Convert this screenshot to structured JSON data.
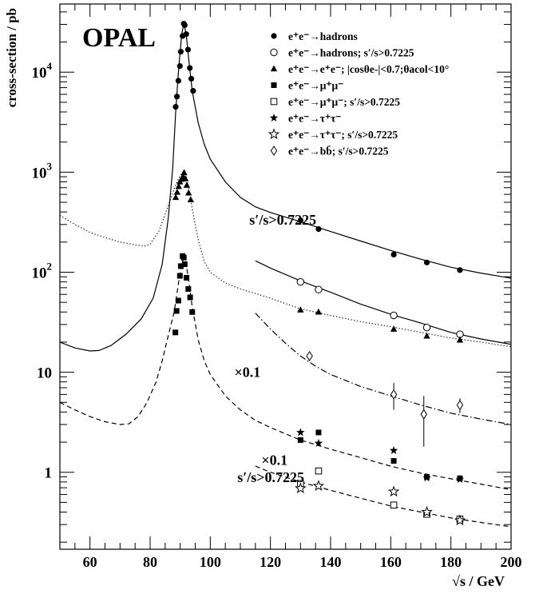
{
  "chart_data": {
    "type": "scatter",
    "title": "OPAL",
    "xlabel": "√s / GeV",
    "ylabel": "cross-section / pb",
    "xlim": [
      50,
      200
    ],
    "ylim": [
      0.17,
      48000
    ],
    "yscale": "log",
    "xticks": [
      "60",
      "80",
      "100",
      "120",
      "140",
      "160",
      "180",
      "200"
    ],
    "yticks": [
      {
        "value": 1,
        "base": "1",
        "exp": ""
      },
      {
        "value": 10,
        "base": "10",
        "exp": ""
      },
      {
        "value": 100,
        "base": "10",
        "exp": "2"
      },
      {
        "value": 1000,
        "base": "10",
        "exp": "3"
      },
      {
        "value": 10000,
        "base": "10",
        "exp": "4"
      }
    ],
    "legend_position": "top-right",
    "annotations": [
      {
        "text": "s′/s>0.7225",
        "x": 113,
        "y": 300
      },
      {
        "text": "×0.1",
        "x": 108,
        "y": 9.0
      },
      {
        "text": "×0.1",
        "x": 117,
        "y": 1.18
      },
      {
        "text": "s′/s>0.7225",
        "x": 109,
        "y": 0.8
      }
    ],
    "legend": [
      {
        "marker": "filled-circle",
        "label": "e⁺e⁻→hadrons"
      },
      {
        "marker": "open-circle",
        "label": "e⁺e⁻→hadrons; s′/s>0.7225"
      },
      {
        "marker": "filled-triangle",
        "label": "e⁺e⁻→e⁺e⁻; |cosθe-|<0.7;θacol<10°"
      },
      {
        "marker": "filled-square",
        "label": "e⁺e⁻→μ⁺μ⁻"
      },
      {
        "marker": "open-square",
        "label": "e⁺e⁻→μ⁺μ⁻; s′/s>0.7225"
      },
      {
        "marker": "filled-star",
        "label": "e⁺e⁻→τ⁺τ⁻"
      },
      {
        "marker": "open-star",
        "label": "e⁺e⁻→τ⁺τ⁻; s′/s>0.7225"
      },
      {
        "marker": "open-diamond",
        "label": "e⁺e⁻→bb̄; s′/s>0.7225"
      }
    ],
    "series": [
      {
        "name": "e⁺e⁻→hadrons",
        "marker": "filled-circle",
        "points": [
          [
            88.5,
            4500
          ],
          [
            88.9,
            5700
          ],
          [
            89.4,
            8200
          ],
          [
            89.9,
            11500
          ],
          [
            90.2,
            16000
          ],
          [
            90.8,
            23000
          ],
          [
            91.2,
            30500
          ],
          [
            91.5,
            29500
          ],
          [
            92.0,
            24000
          ],
          [
            92.6,
            16800
          ],
          [
            93.2,
            11000
          ],
          [
            93.7,
            8600
          ],
          [
            94.3,
            6500
          ],
          [
            130,
            330
          ],
          [
            136,
            270
          ],
          [
            161,
            150
          ],
          [
            172,
            125
          ],
          [
            183,
            105
          ]
        ]
      },
      {
        "name": "e⁺e⁻→hadrons; s′/s>0.7225",
        "marker": "open-circle",
        "points": [
          [
            130,
            80
          ],
          [
            136,
            67
          ],
          [
            161,
            37
          ],
          [
            172,
            28
          ],
          [
            183,
            24
          ]
        ]
      },
      {
        "name": "e⁺e⁻→e⁺e⁻; |cosθe-|<0.7;θacol<10°",
        "marker": "filled-triangle",
        "points": [
          [
            88.5,
            560
          ],
          [
            89.0,
            630
          ],
          [
            89.5,
            720
          ],
          [
            89.9,
            800
          ],
          [
            90.4,
            850
          ],
          [
            90.9,
            900
          ],
          [
            91.3,
            990
          ],
          [
            91.7,
            860
          ],
          [
            92.2,
            740
          ],
          [
            92.8,
            620
          ],
          [
            93.5,
            530
          ],
          [
            130,
            42
          ],
          [
            136,
            40
          ],
          [
            161,
            27
          ],
          [
            172,
            23
          ],
          [
            183,
            21
          ]
        ]
      },
      {
        "name": "e⁺e⁻→μ⁺μ⁻",
        "marker": "filled-square",
        "points": [
          [
            88.4,
            25
          ],
          [
            88.8,
            41
          ],
          [
            89.4,
            52
          ],
          [
            89.9,
            92
          ],
          [
            90.2,
            115
          ],
          [
            90.8,
            145
          ],
          [
            91.2,
            140
          ],
          [
            91.5,
            120
          ],
          [
            92.1,
            88
          ],
          [
            92.7,
            68
          ],
          [
            93.3,
            56
          ],
          [
            94.0,
            40
          ],
          [
            130,
            2.1
          ],
          [
            136,
            2.5
          ],
          [
            161,
            1.3
          ],
          [
            172,
            0.9
          ],
          [
            183,
            0.87
          ]
        ]
      },
      {
        "name": "e⁺e⁻→μ⁺μ⁻; s′/s>0.7225",
        "marker": "open-square",
        "points": [
          [
            130,
            0.77
          ],
          [
            136,
            1.03
          ],
          [
            161,
            0.47
          ],
          [
            172,
            0.38
          ],
          [
            183,
            0.34
          ]
        ]
      },
      {
        "name": "e⁺e⁻→τ⁺τ⁻",
        "marker": "filled-star",
        "points": [
          [
            130,
            2.5
          ],
          [
            136,
            1.95
          ],
          [
            161,
            1.65
          ],
          [
            172,
            0.88
          ],
          [
            183,
            0.85
          ]
        ]
      },
      {
        "name": "e⁺e⁻→τ⁺τ⁻; s′/s>0.7225",
        "marker": "open-star",
        "points": [
          [
            130,
            0.69
          ],
          [
            136,
            0.73
          ],
          [
            161,
            0.64
          ],
          [
            172,
            0.4
          ],
          [
            183,
            0.33
          ]
        ]
      },
      {
        "name": "e⁺e⁻→bb̄; s′/s>0.7225",
        "marker": "open-diamond",
        "points": [
          [
            133,
            14.5
          ],
          [
            161,
            6.0
          ],
          [
            171,
            3.8
          ],
          [
            183,
            4.7
          ]
        ],
        "errors": [
          1.5,
          1.8,
          2.0,
          0.8
        ]
      }
    ],
    "curves": [
      {
        "style": "solid",
        "points": [
          [
            50,
            20
          ],
          [
            55,
            17.5
          ],
          [
            60,
            16.3
          ],
          [
            63,
            16.5
          ],
          [
            67,
            18.5
          ],
          [
            72,
            24
          ],
          [
            77,
            34
          ],
          [
            81,
            55
          ],
          [
            84,
            120
          ],
          [
            86,
            340
          ],
          [
            87.5,
            1100
          ],
          [
            88.5,
            4000
          ],
          [
            89.5,
            11000
          ],
          [
            90.5,
            24000
          ],
          [
            91.2,
            30500
          ],
          [
            92,
            24000
          ],
          [
            93,
            12000
          ],
          [
            94,
            6500
          ],
          [
            96,
            3100
          ],
          [
            98,
            1900
          ],
          [
            100,
            1350
          ],
          [
            105,
            800
          ],
          [
            110,
            560
          ],
          [
            115,
            450
          ],
          [
            120,
            395
          ],
          [
            130,
            320
          ],
          [
            140,
            255
          ],
          [
            150,
            205
          ],
          [
            160,
            165
          ],
          [
            170,
            135
          ],
          [
            180,
            112
          ],
          [
            190,
            98
          ],
          [
            200,
            87
          ]
        ]
      },
      {
        "style": "solid",
        "points": [
          [
            115,
            130
          ],
          [
            120,
            110
          ],
          [
            125,
            95
          ],
          [
            130,
            82
          ],
          [
            140,
            63
          ],
          [
            150,
            48
          ],
          [
            160,
            38
          ],
          [
            170,
            31
          ],
          [
            180,
            25
          ],
          [
            190,
            21.5
          ],
          [
            200,
            19
          ]
        ]
      },
      {
        "style": "dotted",
        "points": [
          [
            50,
            370
          ],
          [
            55,
            300
          ],
          [
            60,
            250
          ],
          [
            65,
            222
          ],
          [
            70,
            200
          ],
          [
            75,
            188
          ],
          [
            78,
            182
          ],
          [
            80,
            190
          ],
          [
            83,
            260
          ],
          [
            85,
            380
          ],
          [
            87,
            560
          ],
          [
            88.5,
            750
          ],
          [
            90,
            930
          ],
          [
            91.2,
            1000
          ],
          [
            92,
            900
          ],
          [
            93,
            650
          ],
          [
            94,
            430
          ],
          [
            96,
            210
          ],
          [
            98,
            128
          ],
          [
            100,
            100
          ],
          [
            105,
            78
          ],
          [
            110,
            68
          ],
          [
            120,
            55
          ],
          [
            130,
            43
          ],
          [
            140,
            37
          ],
          [
            150,
            32
          ],
          [
            160,
            28.5
          ],
          [
            170,
            25
          ],
          [
            180,
            22
          ],
          [
            190,
            20
          ],
          [
            200,
            18
          ]
        ]
      },
      {
        "style": "dashed",
        "points": [
          [
            50,
            5.0
          ],
          [
            55,
            4.2
          ],
          [
            60,
            3.6
          ],
          [
            65,
            3.2
          ],
          [
            70,
            3.0
          ],
          [
            73,
            3.05
          ],
          [
            76,
            3.6
          ],
          [
            79,
            5
          ],
          [
            82,
            8
          ],
          [
            84,
            13
          ],
          [
            86,
            23
          ],
          [
            88,
            40
          ],
          [
            89.5,
            80
          ],
          [
            90.5,
            120
          ],
          [
            91.2,
            140
          ],
          [
            92,
            120
          ],
          [
            93,
            75
          ],
          [
            94,
            45
          ],
          [
            96,
            21
          ],
          [
            98,
            13
          ],
          [
            100,
            9.5
          ],
          [
            105,
            5.8
          ],
          [
            110,
            4.2
          ],
          [
            115,
            3.3
          ],
          [
            120,
            2.8
          ],
          [
            130,
            2.1
          ],
          [
            140,
            1.7
          ],
          [
            150,
            1.4
          ],
          [
            160,
            1.15
          ],
          [
            170,
            0.98
          ],
          [
            180,
            0.86
          ],
          [
            190,
            0.76
          ],
          [
            200,
            0.67
          ]
        ]
      },
      {
        "style": "dashed",
        "points": [
          [
            115,
            1.15
          ],
          [
            120,
            1.0
          ],
          [
            130,
            0.8
          ],
          [
            140,
            0.66
          ],
          [
            150,
            0.55
          ],
          [
            160,
            0.46
          ],
          [
            170,
            0.4
          ],
          [
            180,
            0.35
          ],
          [
            190,
            0.315
          ],
          [
            200,
            0.285
          ]
        ]
      },
      {
        "style": "dashdot",
        "points": [
          [
            115,
            39
          ],
          [
            120,
            27
          ],
          [
            125,
            19.5
          ],
          [
            130,
            14.5
          ],
          [
            135,
            11.5
          ],
          [
            140,
            9.5
          ],
          [
            150,
            7.2
          ],
          [
            160,
            5.8
          ],
          [
            170,
            4.7
          ],
          [
            180,
            3.9
          ],
          [
            190,
            3.4
          ],
          [
            200,
            3.0
          ]
        ]
      }
    ]
  }
}
